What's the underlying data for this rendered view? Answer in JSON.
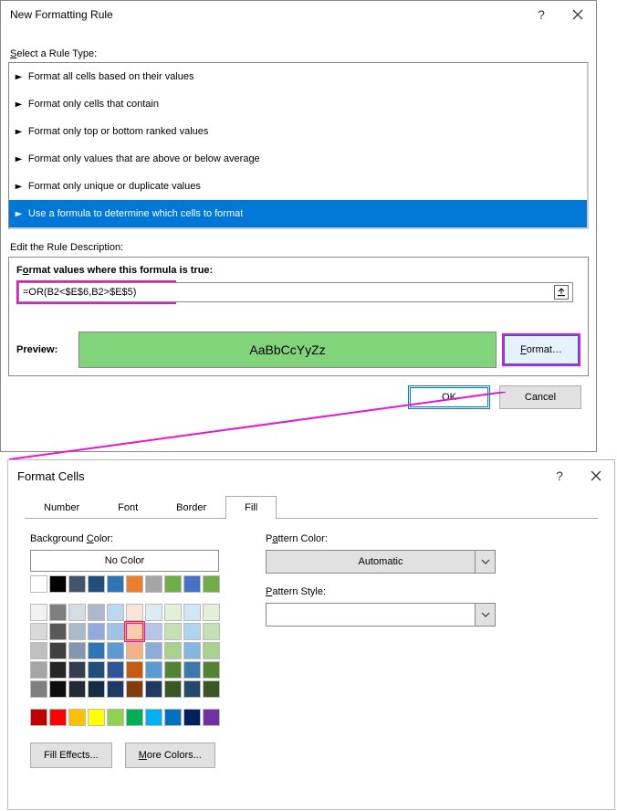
{
  "dlg1": {
    "title": "New Formatting Rule",
    "help": "?",
    "select_label_pre": "",
    "select_label": "Select a Rule Type:",
    "rule_types": [
      "Format all cells based on their values",
      "Format only cells that contain",
      "Format only top or bottom ranked values",
      "Format only values that are above or below average",
      "Format only unique or duplicate values",
      "Use a formula to determine which cells to format"
    ],
    "selected_rule_index": 5,
    "edit_label": "Edit the Rule Description:",
    "formula_caption": "Format values where this formula is true:",
    "formula_value": "=OR(B2<$E$6,B2>$E$5)",
    "preview_label": "Preview:",
    "preview_text": "AaBbCcYyZz",
    "preview_fill": "#82d47b",
    "format_btn": "Format…",
    "ok": "OK",
    "cancel": "Cancel"
  },
  "dlg2": {
    "title": "Format Cells",
    "help": "?",
    "tabs": [
      "Number",
      "Font",
      "Border",
      "Fill"
    ],
    "active_tab_index": 3,
    "bg_label": "Background Color:",
    "nocolor": "No Color",
    "pattern_color_label": "Pattern Color:",
    "pattern_color_value": "Automatic",
    "pattern_style_label": "Pattern Style:",
    "fill_effects": "Fill Effects...",
    "more_colors": "More Colors...",
    "themeRow1": [
      "#ffffff",
      "#000000",
      "#44546a",
      "#1f4e79",
      "#2e75b6",
      "#ed7d31",
      "#a5a5a5",
      "#70ad47",
      "#4472c4",
      "#70ad47"
    ],
    "tintGrid": [
      [
        "#f2f2f2",
        "#7f7f7f",
        "#d6dce5",
        "#adb9ca",
        "#bdd7ee",
        "#fbe5d6",
        "#deebf7",
        "#e2f0d9",
        "#d0e7f7",
        "#e2f0d9"
      ],
      [
        "#d9d9d9",
        "#595959",
        "#acb9ca",
        "#8faadc",
        "#9dc3e6",
        "#f8cbad",
        "#b4c7e7",
        "#c5e0b4",
        "#aed4ef",
        "#c5e0b4"
      ],
      [
        "#bfbfbf",
        "#404040",
        "#8497b0",
        "#2e75b6",
        "#5b9bd5",
        "#f4b183",
        "#8faadc",
        "#a9d18e",
        "#82b8e0",
        "#a9d18e"
      ],
      [
        "#a6a6a6",
        "#262626",
        "#333f50",
        "#1f4e79",
        "#2f5597",
        "#c55a11",
        "#5b9bd5",
        "#548235",
        "#3c78a8",
        "#548235"
      ],
      [
        "#808080",
        "#0d0d0d",
        "#222a35",
        "#132b44",
        "#1f3864",
        "#843c0c",
        "#203864",
        "#385723",
        "#234a6a",
        "#385723"
      ]
    ],
    "stdRow": [
      "#c00000",
      "#ff0000",
      "#ffc000",
      "#ffff00",
      "#92d050",
      "#00b050",
      "#00b0f0",
      "#0070c0",
      "#002060",
      "#7030a0"
    ],
    "selected_swatch": {
      "grid": "tint",
      "row": 1,
      "col": 5
    }
  },
  "highlight_color": "#e815d0"
}
